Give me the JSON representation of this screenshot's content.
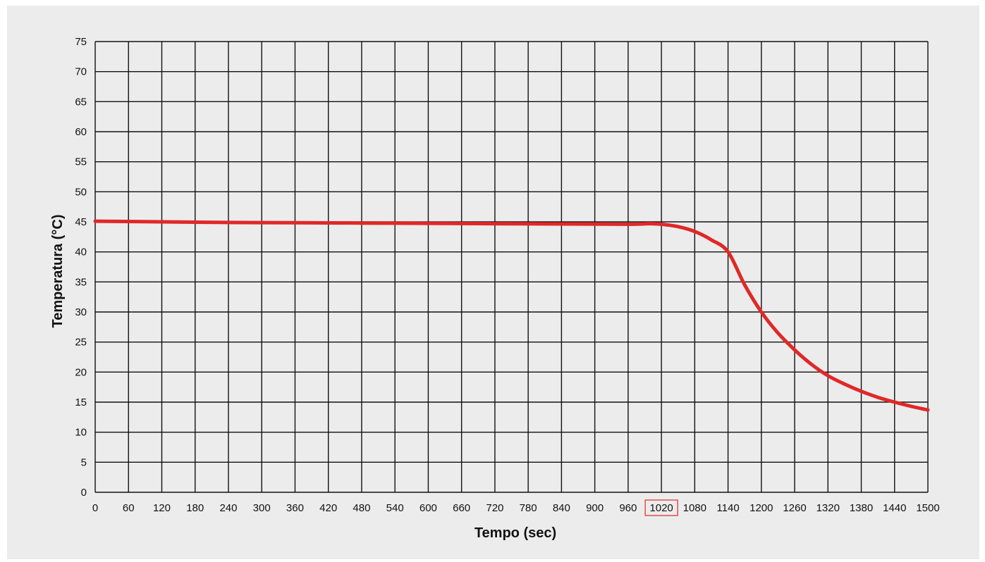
{
  "chart_data": {
    "type": "line",
    "title": "",
    "xlabel": "Tempo (sec)",
    "ylabel": "Temperatura (°C)",
    "xlim": [
      0,
      1500
    ],
    "ylim": [
      0,
      75
    ],
    "x_ticks": [
      "0",
      "60",
      "120",
      "180",
      "240",
      "300",
      "360",
      "420",
      "480",
      "540",
      "600",
      "660",
      "720",
      "780",
      "840",
      "900",
      "960",
      "1020",
      "1080",
      "1140",
      "1200",
      "1260",
      "1320",
      "1380",
      "1440",
      "1500"
    ],
    "y_ticks": [
      "0",
      "5",
      "10",
      "15",
      "20",
      "25",
      "30",
      "35",
      "40",
      "45",
      "50",
      "55",
      "60",
      "65",
      "70",
      "75"
    ],
    "highlighted_x_tick": "1020",
    "grid": true,
    "series": [
      {
        "color": "#e02828",
        "x": [
          0,
          120,
          240,
          360,
          480,
          600,
          720,
          840,
          960,
          1000,
          1020,
          1050,
          1080,
          1110,
          1140,
          1170,
          1200,
          1230,
          1260,
          1290,
          1320,
          1350,
          1380,
          1410,
          1440,
          1470,
          1500
        ],
        "y": [
          45.1,
          45.0,
          44.9,
          44.85,
          44.8,
          44.75,
          44.7,
          44.65,
          44.6,
          44.7,
          44.6,
          44.2,
          43.4,
          42.0,
          40.0,
          34.5,
          30.0,
          26.5,
          23.7,
          21.3,
          19.4,
          18.0,
          16.8,
          15.8,
          15.0,
          14.3,
          13.7
        ]
      }
    ]
  }
}
